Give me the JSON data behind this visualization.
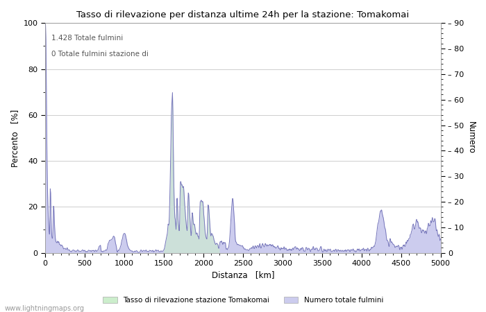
{
  "title": "Tasso di rilevazione per distanza ultime 24h per la stazione: Tomakomai",
  "xlabel": "Distanza   [km]",
  "ylabel_left": "Percento   [%]",
  "ylabel_right": "Numero",
  "annotation1": "1.428 Totale fulmini",
  "annotation2": "0 Totale fulmini stazione di",
  "xlim": [
    0,
    5000
  ],
  "ylim_left": [
    0,
    100
  ],
  "ylim_right": [
    0,
    90
  ],
  "legend_label1": "Tasso di rilevazione stazione Tomakomai",
  "legend_label2": "Numero totale fulmini",
  "line_color": "#7777bb",
  "fill_color_detection": "#cceecc",
  "fill_color_count": "#ccccee",
  "bg_color": "#ffffff",
  "grid_color": "#bbbbbb",
  "watermark": "www.lightningmaps.org",
  "xticks": [
    0,
    500,
    1000,
    1500,
    2000,
    2500,
    3000,
    3500,
    4000,
    4500,
    5000
  ],
  "yticks_left": [
    0,
    20,
    40,
    60,
    80,
    100
  ],
  "yticks_right_vals": [
    0,
    10,
    20,
    30,
    40,
    50,
    60,
    70,
    80,
    90
  ],
  "yticks_right_labels": [
    "0",
    "– 10",
    "– 20",
    "– 30",
    "– 40",
    "– 50",
    "– 60",
    "– 70",
    "– 80",
    "– 90"
  ]
}
